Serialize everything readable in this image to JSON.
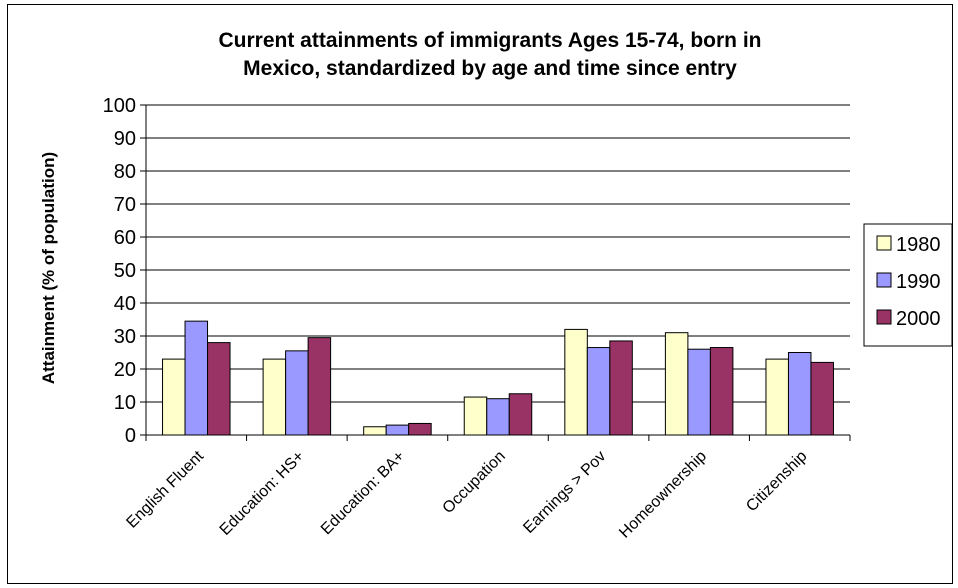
{
  "chart_data": {
    "type": "bar",
    "title": [
      "Current attainments of immigrants Ages 15-74, born in",
      "Mexico, standardized by age and time since entry"
    ],
    "xlabel": "",
    "ylabel": "Attainment (% of population)",
    "ylim": [
      0,
      100
    ],
    "yticks": [
      0,
      10,
      20,
      30,
      40,
      50,
      60,
      70,
      80,
      90,
      100
    ],
    "grid": true,
    "legend_position": "right",
    "categories": [
      "English Fluent",
      "Education: HS+",
      "Education: BA+",
      "Occupation",
      "Earnings > Pov",
      "Homeownership",
      "Citizenship"
    ],
    "series": [
      {
        "name": "1980",
        "color": "#ffffcc",
        "values": [
          23,
          23,
          2.5,
          11.5,
          32,
          31,
          23
        ]
      },
      {
        "name": "1990",
        "color": "#9999ff",
        "values": [
          34.5,
          25.5,
          3,
          11,
          26.5,
          26,
          25
        ]
      },
      {
        "name": "2000",
        "color": "#993366",
        "values": [
          28,
          29.5,
          3.5,
          12.5,
          28.5,
          26.5,
          22
        ]
      }
    ]
  }
}
